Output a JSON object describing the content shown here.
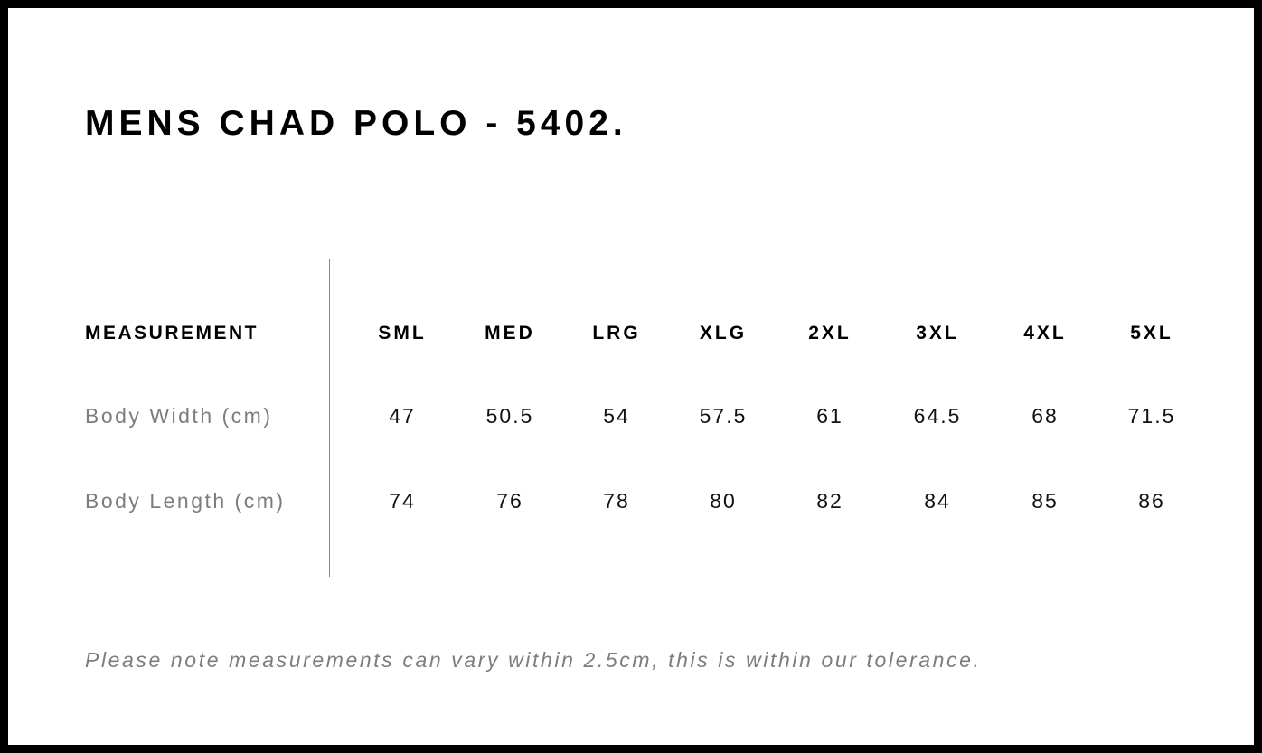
{
  "title": "MENS CHAD POLO - 5402.",
  "table": {
    "header_label": "MEASUREMENT",
    "sizes": [
      "SML",
      "MED",
      "LRG",
      "XLG",
      "2XL",
      "3XL",
      "4XL",
      "5XL"
    ],
    "rows": [
      {
        "label": "Body Width (cm)",
        "values": [
          "47",
          "50.5",
          "54",
          "57.5",
          "61",
          "64.5",
          "68",
          "71.5"
        ]
      },
      {
        "label": "Body Length (cm)",
        "values": [
          "74",
          "76",
          "78",
          "80",
          "82",
          "84",
          "85",
          "86"
        ]
      }
    ]
  },
  "note": "Please note measurements can vary within 2.5cm, this is within our tolerance.",
  "colors": {
    "border": "#000000",
    "label_grey": "#7d7d7d"
  }
}
